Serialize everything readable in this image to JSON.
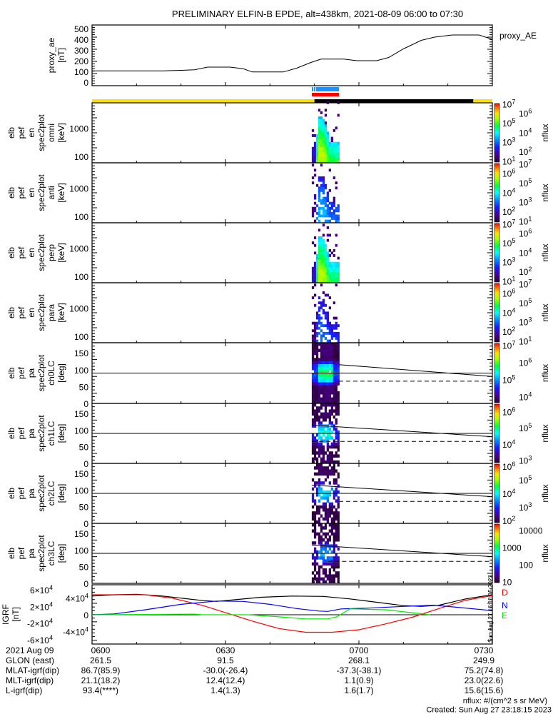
{
  "title": "PRELIMINARY ELFIN-B EPDE, alt=438km, 2021-08-09 06:00 to 07:30",
  "time_axis": {
    "date_label": "2021 Aug 09",
    "ticks": [
      "0600",
      "0630",
      "0700",
      "0730"
    ],
    "range_minutes": [
      0,
      90
    ]
  },
  "orbit_rows": [
    {
      "label": "GLON (east)",
      "values": [
        "261.5",
        "91.5",
        "268.1",
        "249.9"
      ]
    },
    {
      "label": "MLAT-igrf(dip)",
      "values": [
        "86.7(85.9)",
        "-30.0(-26.4)",
        "-37.3(-38.1)",
        "75.2(74.8)"
      ]
    },
    {
      "label": "MLT-igrf(dip)",
      "values": [
        "21.1(18.2)",
        "12.4(12.4)",
        "1.1(0.9)",
        "23.0(22.6)"
      ]
    },
    {
      "label": "L-igrf(dip)",
      "values": [
        "93.4(****)",
        "1.4(1.3)",
        "1.6(1.7)",
        "15.6(15.6)"
      ]
    }
  ],
  "footer": {
    "units": "nflux: #/(cm^2 s sr MeV)",
    "created": "Created: Sun Aug 27 23:18:15 2023"
  },
  "side_stamp": "Sun Aug 27 16:18:15 2023",
  "status_bars": {
    "science_zone_color": "#1e90ff",
    "fgm_color": "#ff0000",
    "sunlight_color": "#ffe000",
    "shadow_color": "#000000",
    "science_zone_minutes": [
      49.4,
      55.5
    ],
    "fgm_minutes": [
      49.4,
      55.5
    ],
    "shadow_minutes": [
      50.0,
      85.7
    ]
  },
  "chart_data": [
    {
      "id": "proxy_ae",
      "type": "line",
      "ylabel_lines": [
        "proxy_ae",
        "[nT]"
      ],
      "legend": "proxy_AE",
      "ylim": [
        0,
        520
      ],
      "yticks": [
        "0",
        "100",
        "200",
        "300",
        "400",
        "500"
      ],
      "x_minutes": [
        0,
        16,
        20,
        23,
        26,
        31,
        34,
        36,
        43,
        46,
        49,
        51.5,
        56.6,
        59.5,
        64,
        66.7,
        70,
        74,
        77,
        81,
        87,
        90
      ],
      "y": [
        105,
        105,
        110,
        115,
        140,
        140,
        125,
        95,
        95,
        130,
        180,
        215,
        215,
        200,
        200,
        230,
        310,
        390,
        420,
        440,
        440,
        400
      ]
    },
    {
      "id": "en_omni",
      "type": "heatmap",
      "ylabel_lines": [
        "elb",
        "pef",
        "en",
        "spec2plot",
        "omni",
        "[keV]"
      ],
      "yscale": "log",
      "ylim": [
        60,
        8000
      ],
      "yticks": [
        "100",
        "1000"
      ],
      "zlabel": "nflux",
      "zlog_range": [
        0.8,
        7.1
      ],
      "zticks": [
        [
          "10",
          "7"
        ],
        [
          "10",
          "6"
        ],
        [
          "10",
          "5"
        ],
        [
          "10",
          "4"
        ],
        [
          "10",
          "3"
        ],
        [
          "10",
          "2"
        ],
        [
          "10",
          "1"
        ]
      ],
      "strength": 1.0
    },
    {
      "id": "en_anti",
      "type": "heatmap",
      "ylabel_lines": [
        "elb",
        "pef",
        "en",
        "spec2plot",
        "anti",
        "[keV]"
      ],
      "yscale": "log",
      "ylim": [
        60,
        8000
      ],
      "yticks": [
        "100",
        "1000"
      ],
      "zlabel": "nflux",
      "zlog_range": [
        0.8,
        7.1
      ],
      "zticks": [
        [
          "10",
          "7"
        ],
        [
          "10",
          "6"
        ],
        [
          "10",
          "5"
        ],
        [
          "10",
          "4"
        ],
        [
          "10",
          "3"
        ],
        [
          "10",
          "2"
        ],
        [
          "10",
          "1"
        ]
      ],
      "strength": 0.55
    },
    {
      "id": "en_perp",
      "type": "heatmap",
      "ylabel_lines": [
        "elb",
        "pef",
        "en",
        "spec2plot",
        "perp",
        "[keV]"
      ],
      "yscale": "log",
      "ylim": [
        60,
        8000
      ],
      "yticks": [
        "100",
        "1000"
      ],
      "zlabel": "nflux",
      "zlog_range": [
        0.8,
        7.1
      ],
      "zticks": [
        [
          "10",
          "7"
        ],
        [
          "10",
          "6"
        ],
        [
          "10",
          "5"
        ],
        [
          "10",
          "4"
        ],
        [
          "10",
          "3"
        ],
        [
          "10",
          "2"
        ],
        [
          "10",
          "1"
        ]
      ],
      "strength": 1.0
    },
    {
      "id": "en_para",
      "type": "heatmap",
      "ylabel_lines": [
        "elb",
        "pef",
        "en",
        "spec2plot",
        "para",
        "[keV]"
      ],
      "yscale": "log",
      "ylim": [
        60,
        8000
      ],
      "yticks": [
        "100",
        "1000"
      ],
      "zlabel": "nflux",
      "zlog_range": [
        0.8,
        7.1
      ],
      "zticks": [
        [
          "10",
          "7"
        ],
        [
          "10",
          "6"
        ],
        [
          "10",
          "5"
        ],
        [
          "10",
          "4"
        ],
        [
          "10",
          "3"
        ],
        [
          "10",
          "2"
        ],
        [
          "10",
          "1"
        ]
      ],
      "strength": 0.45
    },
    {
      "id": "pa_ch0",
      "type": "heatmap",
      "ylabel_lines": [
        "elb",
        "pef",
        "pa",
        "spec2plot",
        "ch0LC",
        "[deg]"
      ],
      "ylim": [
        0,
        180
      ],
      "yticks": [
        "0",
        "50",
        "100",
        "150"
      ],
      "zlabel": "nflux",
      "zlog_range": [
        3.6,
        7.15
      ],
      "zticks": [
        [
          "10",
          "7"
        ],
        [
          "10",
          "6"
        ],
        [
          "10",
          "5"
        ],
        [
          "10",
          "4"
        ]
      ],
      "strength": 1.0,
      "overlay": {
        "solid_level": 90,
        "loss_cone": {
          "x_minutes": [
            55.5,
            90
          ],
          "y": [
            115,
            80
          ]
        },
        "dashed": {
          "x_minutes": [
            55.5,
            90
          ],
          "y": 66
        }
      }
    },
    {
      "id": "pa_ch1",
      "type": "heatmap",
      "ylabel_lines": [
        "elb",
        "pef",
        "pa",
        "spec2plot",
        "ch1LC",
        "[deg]"
      ],
      "ylim": [
        0,
        180
      ],
      "yticks": [
        "0",
        "50",
        "100",
        "150"
      ],
      "zlabel": "nflux",
      "zlog_range": [
        2.8,
        6.5
      ],
      "zticks": [
        [
          "10",
          "6"
        ],
        [
          "10",
          "5"
        ],
        [
          "10",
          "4"
        ],
        [
          "10",
          "3"
        ]
      ],
      "strength": 0.85,
      "overlay": {
        "solid_level": 90,
        "loss_cone": {
          "x_minutes": [
            49.4,
            90
          ],
          "y": [
            115,
            80
          ]
        },
        "dashed": {
          "x_minutes": [
            49.4,
            90
          ],
          "y": 66
        }
      }
    },
    {
      "id": "pa_ch2",
      "type": "heatmap",
      "ylabel_lines": [
        "elb",
        "pef",
        "pa",
        "spec2plot",
        "ch2LC",
        "[deg]"
      ],
      "ylim": [
        0,
        180
      ],
      "yticks": [
        "0",
        "50",
        "100",
        "150"
      ],
      "zlabel": "nflux",
      "zlog_range": [
        1.8,
        6.2
      ],
      "zticks": [
        [
          "10",
          "6"
        ],
        [
          "10",
          "5"
        ],
        [
          "10",
          "4"
        ],
        [
          "10",
          "3"
        ],
        [
          "10",
          "2"
        ]
      ],
      "strength": 0.75,
      "overlay": {
        "solid_level": 90,
        "loss_cone": {
          "x_minutes": [
            49.4,
            90
          ],
          "y": [
            115,
            80
          ]
        },
        "dashed": {
          "x_minutes": [
            55.5,
            90
          ],
          "y": 66
        }
      }
    },
    {
      "id": "pa_ch3",
      "type": "heatmap",
      "ylabel_lines": [
        "elb",
        "pef",
        "pa",
        "spec2plot",
        "ch3LC",
        "[deg]"
      ],
      "ylim": [
        0,
        180
      ],
      "yticks": [
        "0",
        "50",
        "100",
        "150"
      ],
      "zlabel": "nflux",
      "zlog_range": [
        0.9,
        4.4
      ],
      "zticks": [
        [
          "10000",
          ""
        ],
        [
          "1000",
          ""
        ],
        [
          "100",
          ""
        ],
        [
          "10",
          ""
        ]
      ],
      "strength": 0.65,
      "overlay": {
        "solid_level": 90,
        "loss_cone": {
          "x_minutes": [
            49.4,
            90
          ],
          "y": [
            115,
            80
          ]
        },
        "dashed": {
          "x_minutes": [
            53,
            90
          ],
          "y": 66
        }
      }
    },
    {
      "id": "igrf",
      "type": "line",
      "ylabel_lines": [
        "IGRF",
        "[nT]"
      ],
      "ylim": [
        -63000,
        63000
      ],
      "yticks": [
        "-6×10^4",
        "-4×10^4",
        "-2×10^4",
        "0",
        "2×10^4",
        "4×10^4",
        "6×10^4"
      ],
      "series": [
        {
          "name": "total",
          "label": "",
          "color": "#000000",
          "x_minutes": [
            0,
            5,
            10,
            15,
            20,
            25,
            28,
            32,
            38,
            45,
            52,
            58,
            64,
            70,
            74,
            78,
            84,
            90
          ],
          "y": [
            45000,
            48000,
            49000,
            46000,
            40000,
            34000,
            32000,
            36000,
            42000,
            45000,
            44000,
            38000,
            30000,
            22000,
            20000,
            23000,
            38000,
            48000
          ]
        },
        {
          "name": "D",
          "label": "D",
          "color": "#ff0000",
          "x_minutes": [
            0,
            12,
            18,
            25,
            30,
            36,
            42,
            48,
            54,
            60,
            66,
            72,
            78,
            84,
            90
          ],
          "y": [
            48000,
            48000,
            40000,
            22000,
            5000,
            -15000,
            -33000,
            -42000,
            -42000,
            -36000,
            -22000,
            -6000,
            15000,
            35000,
            46000
          ]
        },
        {
          "name": "N",
          "label": "N",
          "color": "#0000ff",
          "x_minutes": [
            0,
            5,
            12,
            20,
            28,
            34,
            40,
            46,
            51,
            53,
            56,
            62,
            70,
            77,
            82,
            90
          ],
          "y": [
            0,
            2000,
            12000,
            25000,
            33000,
            32000,
            25000,
            15000,
            9000,
            8000,
            14000,
            16000,
            20000,
            23000,
            18000,
            10000
          ]
        },
        {
          "name": "E",
          "label": "E",
          "color": "#00ee00",
          "x_minutes": [
            0,
            0.5,
            23,
            25,
            35,
            42,
            48,
            53,
            55,
            58,
            66,
            72,
            76
          ],
          "y": [
            0,
            0,
            1500,
            0,
            0,
            -5000,
            -10000,
            -10000,
            -5000,
            14000,
            12000,
            5000,
            0
          ]
        }
      ]
    }
  ]
}
